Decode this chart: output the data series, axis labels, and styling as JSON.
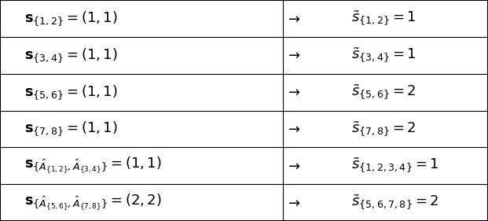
{
  "rows": [
    {
      "left": "$\\mathbf{s}_{\\{1,2\\}} = (1, 1)$",
      "arrow": "$\\rightarrow$",
      "right": "$\\tilde{s}_{\\{1,2\\}} = 1$"
    },
    {
      "left": "$\\mathbf{s}_{\\{3,4\\}} = (1, 1)$",
      "arrow": "$\\rightarrow$",
      "right": "$\\tilde{s}_{\\{3,4\\}} = 1$"
    },
    {
      "left": "$\\mathbf{s}_{\\{5,6\\}} = (1, 1)$",
      "arrow": "$\\rightarrow$",
      "right": "$\\tilde{s}_{\\{5,6\\}} = 2$"
    },
    {
      "left": "$\\mathbf{s}_{\\{7,8\\}} = (1, 1)$",
      "arrow": "$\\rightarrow$",
      "right": "$\\tilde{s}_{\\{7,8\\}} = 2$"
    },
    {
      "left": "$\\mathbf{s}_{\\{\\hat{A}_{\\{1,2\\}},\\hat{A}_{\\{3,4\\}}\\}} = (1, 1)$",
      "arrow": "$\\rightarrow$",
      "right": "$\\tilde{s}_{\\{1,2,3,4\\}} = 1$"
    },
    {
      "left": "$\\mathbf{s}_{\\{\\hat{A}_{\\{5,6\\}},\\hat{A}_{\\{7,8\\}}\\}} = (2, 2)$",
      "arrow": "$\\rightarrow$",
      "right": "$\\tilde{s}_{\\{5,6,7,8\\}} = 2$"
    }
  ],
  "bg_color": "#ffffff",
  "line_color": "#000000",
  "text_color": "#000000",
  "border_color": "#000000",
  "fontsize": 13
}
